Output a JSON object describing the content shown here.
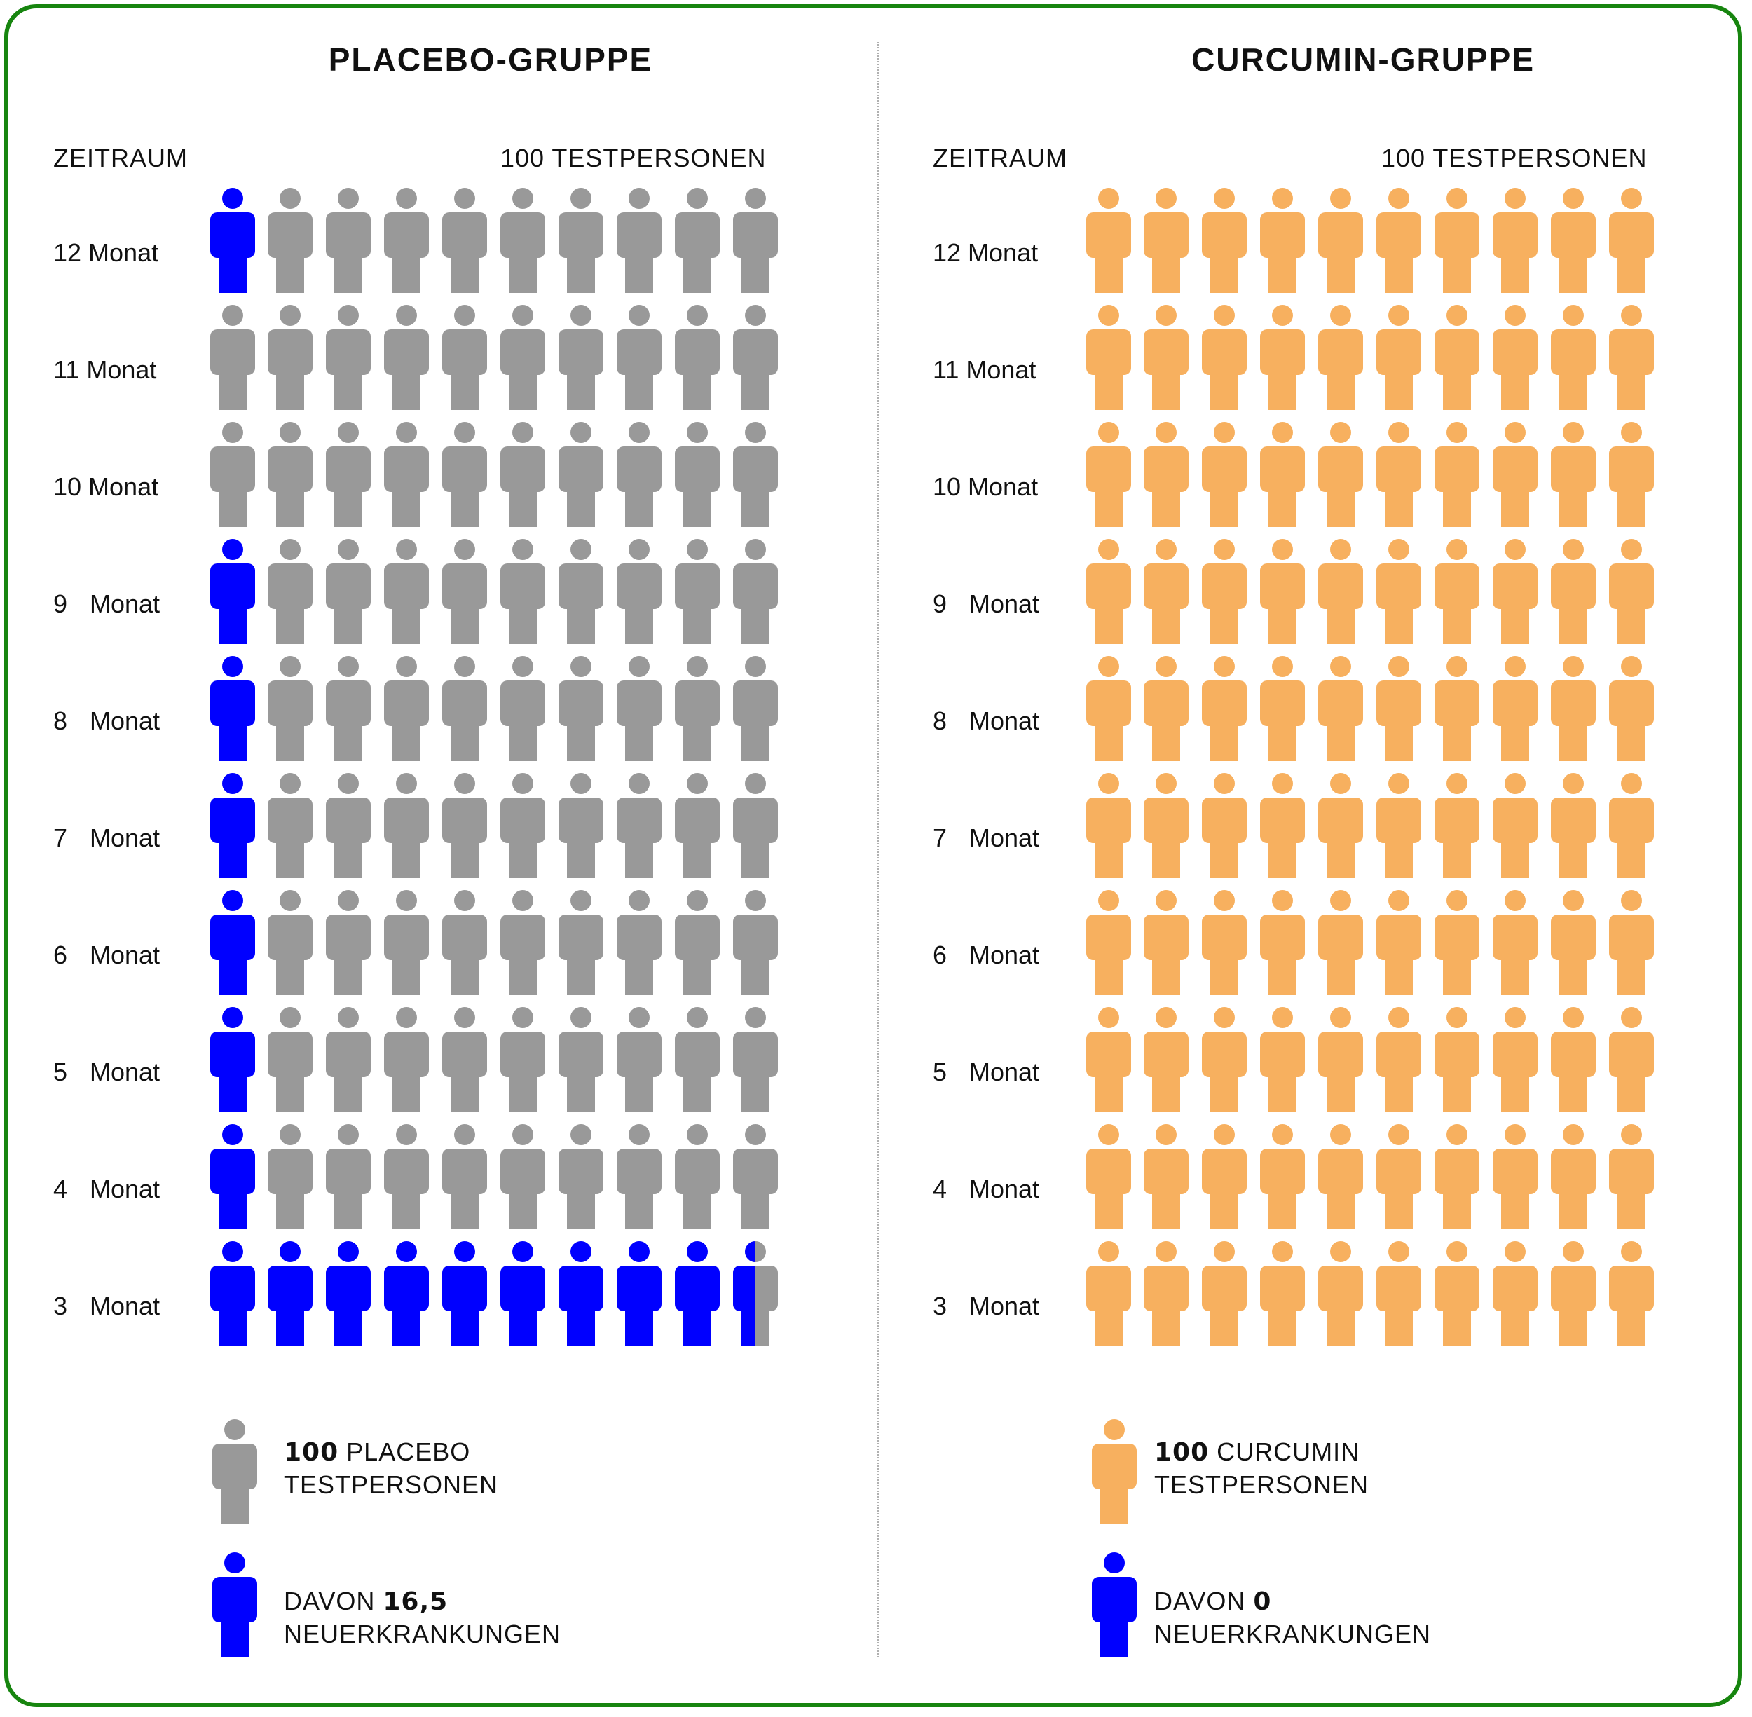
{
  "colors": {
    "frame": "#17850f",
    "placebo": "#999999",
    "case": "#0000ff",
    "curcumin": "#f7b05f"
  },
  "icons": {
    "person": "person-icon"
  },
  "panels": [
    {
      "title": "PLACEBO-GRUPPE",
      "zeitraum_label": "ZEITRAUM",
      "count_label": "100 TESTPERSONEN",
      "legend": {
        "group_number": "100",
        "group_text_1": " PLACEBO",
        "group_text_2": "TESTPERSONEN",
        "cases_prefix": "DAVON ",
        "cases_number": "16,5",
        "cases_text_2": "NEUERKRANKUNGEN"
      }
    },
    {
      "title": "CURCUMIN-GRUPPE",
      "zeitraum_label": "ZEITRAUM",
      "count_label": "100 TESTPERSONEN",
      "legend": {
        "group_number": "100",
        "group_text_1": " CURCUMIN",
        "group_text_2": "TESTPERSONEN",
        "cases_prefix": "DAVON ",
        "cases_number": "0",
        "cases_text_2": "NEUERKRANKUNGEN"
      }
    }
  ],
  "rows": [
    {
      "num": "12",
      "unit": "Monat"
    },
    {
      "num": "11",
      "unit": "Monat"
    },
    {
      "num": "10",
      "unit": "Monat"
    },
    {
      "num": "9",
      "unit": "Monat"
    },
    {
      "num": "8",
      "unit": "Monat"
    },
    {
      "num": "7",
      "unit": "Monat"
    },
    {
      "num": "6",
      "unit": "Monat"
    },
    {
      "num": "5",
      "unit": "Monat"
    },
    {
      "num": "4",
      "unit": "Monat"
    },
    {
      "num": "3",
      "unit": "Monat"
    }
  ],
  "chart_data": [
    {
      "type": "pictogram",
      "title": "PLACEBO-GRUPPE",
      "total": 100,
      "new_cases": 16.5,
      "per_row": 10,
      "row_labels": [
        "12 Monat",
        "11 Monat",
        "10 Monat",
        "9 Monat",
        "8 Monat",
        "7 Monat",
        "6 Monat",
        "5 Monat",
        "4 Monat",
        "3 Monat"
      ],
      "cases_per_row": [
        1,
        0,
        0,
        1,
        1,
        1,
        1,
        1,
        1,
        9.5
      ],
      "base_color": "#999999",
      "case_color": "#0000ff"
    },
    {
      "type": "pictogram",
      "title": "CURCUMIN-GRUPPE",
      "total": 100,
      "new_cases": 0,
      "per_row": 10,
      "row_labels": [
        "12 Monat",
        "11 Monat",
        "10 Monat",
        "9 Monat",
        "8 Monat",
        "7 Monat",
        "6 Monat",
        "5 Monat",
        "4 Monat",
        "3 Monat"
      ],
      "cases_per_row": [
        0,
        0,
        0,
        0,
        0,
        0,
        0,
        0,
        0,
        0
      ],
      "base_color": "#f7b05f",
      "case_color": "#0000ff"
    }
  ]
}
